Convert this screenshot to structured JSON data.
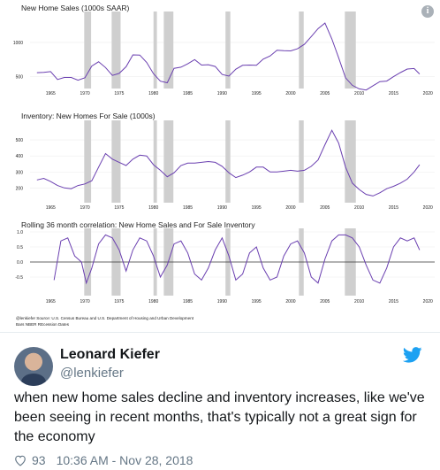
{
  "chart_data": [
    {
      "type": "line",
      "title": "New Home Sales (1000s SAAR)",
      "x_ticks": [
        "1965",
        "1970",
        "1975",
        "1980",
        "1985",
        "1990",
        "1995",
        "2000",
        "2005",
        "2010",
        "2015",
        "2020"
      ],
      "y_ticks": [
        "500",
        "1000"
      ],
      "ylim": [
        380,
        1400
      ],
      "xlim": [
        1962,
        2021
      ],
      "series": [
        {
          "x": [
            1963,
            1964,
            1965,
            1966,
            1967,
            1968,
            1969,
            1970,
            1971,
            1972,
            1973,
            1974,
            1975,
            1976,
            1977,
            1978,
            1979,
            1980,
            1981,
            1982,
            1983,
            1984,
            1985,
            1986,
            1987,
            1988,
            1989,
            1990,
            1991,
            1992,
            1993,
            1994,
            1995,
            1996,
            1997,
            1998,
            1999,
            2000,
            2001,
            2002,
            2003,
            2004,
            2005,
            2006,
            2007,
            2008,
            2009,
            2010,
            2011,
            2012,
            2013,
            2014,
            2015,
            2016,
            2017,
            2018,
            2018.8
          ],
          "y": [
            560,
            565,
            575,
            460,
            490,
            490,
            450,
            485,
            656,
            718,
            634,
            519,
            549,
            646,
            819,
            817,
            709,
            545,
            436,
            412,
            623,
            639,
            688,
            750,
            671,
            676,
            650,
            534,
            509,
            610,
            666,
            670,
            667,
            757,
            804,
            886,
            880,
            877,
            908,
            973,
            1086,
            1203,
            1283,
            1051,
            776,
            485,
            375,
            323,
            306,
            368,
            429,
            437,
            501,
            561,
            613,
            620,
            540
          ]
        }
      ],
      "recessions": [
        [
          1969.9,
          1970.9
        ],
        [
          1973.9,
          1975.2
        ],
        [
          1980.0,
          1980.5
        ],
        [
          1981.5,
          1982.9
        ],
        [
          1990.5,
          1991.2
        ],
        [
          2001.2,
          2001.9
        ],
        [
          2007.9,
          2009.5
        ]
      ]
    },
    {
      "type": "line",
      "title": "Inventory: New Homes For Sale (1000s)",
      "x_ticks": [
        "1965",
        "1970",
        "1975",
        "1980",
        "1985",
        "1990",
        "1995",
        "2000",
        "2005",
        "2010",
        "2015",
        "2020"
      ],
      "y_ticks": [
        "200",
        "300",
        "400",
        "500"
      ],
      "ylim": [
        130,
        600
      ],
      "xlim": [
        1962,
        2021
      ],
      "series": [
        {
          "x": [
            1963,
            1964,
            1965,
            1966,
            1967,
            1968,
            1969,
            1970,
            1971,
            1972,
            1973,
            1974,
            1975,
            1976,
            1977,
            1978,
            1979,
            1980,
            1981,
            1982,
            1983,
            1984,
            1985,
            1986,
            1987,
            1988,
            1989,
            1990,
            1991,
            1992,
            1993,
            1994,
            1995,
            1996,
            1997,
            1998,
            1999,
            2000,
            2001,
            2002,
            2003,
            2004,
            2005,
            2006,
            2007,
            2008,
            2009,
            2010,
            2011,
            2012,
            2013,
            2014,
            2015,
            2016,
            2017,
            2018,
            2018.8
          ],
          "y": [
            250,
            260,
            240,
            215,
            200,
            195,
            215,
            225,
            245,
            330,
            415,
            380,
            360,
            340,
            380,
            405,
            400,
            345,
            310,
            270,
            295,
            340,
            355,
            355,
            360,
            365,
            360,
            335,
            295,
            265,
            280,
            300,
            330,
            330,
            300,
            300,
            305,
            310,
            305,
            310,
            335,
            375,
            470,
            560,
            480,
            330,
            230,
            190,
            160,
            150,
            170,
            195,
            210,
            230,
            255,
            300,
            345
          ]
        }
      ],
      "recessions": [
        [
          1969.9,
          1970.9
        ],
        [
          1973.9,
          1975.2
        ],
        [
          1980.0,
          1980.5
        ],
        [
          1981.5,
          1982.9
        ],
        [
          1990.5,
          1991.2
        ],
        [
          2001.2,
          2001.9
        ],
        [
          2007.9,
          2009.5
        ]
      ]
    },
    {
      "type": "line",
      "title": "Rolling 36 month correlation: New Home Sales and For Sale Inventory",
      "x_ticks": [
        "1965",
        "1970",
        "1975",
        "1980",
        "1985",
        "1990",
        "1995",
        "2000",
        "2005",
        "2010",
        "2015",
        "2020"
      ],
      "y_ticks": [
        "1.0",
        "0.5",
        "0.0",
        "-0.5"
      ],
      "ylim": [
        -1.0,
        1.0
      ],
      "xlim": [
        1962,
        2021
      ],
      "series": [
        {
          "x": [
            1965.5,
            1966.5,
            1967.5,
            1968.5,
            1969.5,
            1970.2,
            1971,
            1972,
            1973,
            1974,
            1975,
            1976,
            1977,
            1978,
            1979,
            1980,
            1981,
            1982,
            1983,
            1984,
            1985,
            1986,
            1987,
            1988,
            1989,
            1990,
            1991,
            1992,
            1993,
            1994,
            1995,
            1996,
            1997,
            1998,
            1999,
            2000,
            2001,
            2002,
            2003,
            2004,
            2005,
            2006,
            2007,
            2008,
            2009,
            2010,
            2011,
            2012,
            2013,
            2014,
            2015,
            2016,
            2017,
            2018,
            2018.8
          ],
          "y": [
            -0.6,
            0.7,
            0.8,
            0.2,
            0.0,
            -0.7,
            -0.2,
            0.6,
            0.9,
            0.8,
            0.4,
            -0.3,
            0.4,
            0.8,
            0.7,
            0.2,
            -0.5,
            -0.1,
            0.6,
            0.7,
            0.3,
            -0.4,
            -0.6,
            -0.2,
            0.4,
            0.8,
            0.2,
            -0.6,
            -0.4,
            0.3,
            0.5,
            -0.2,
            -0.6,
            -0.5,
            0.2,
            0.6,
            0.7,
            0.3,
            -0.5,
            -0.7,
            0.1,
            0.7,
            0.9,
            0.9,
            0.8,
            0.5,
            -0.1,
            -0.6,
            -0.7,
            -0.2,
            0.5,
            0.8,
            0.7,
            0.8,
            0.4
          ]
        }
      ],
      "recessions": [
        [
          1969.9,
          1970.9
        ],
        [
          1973.9,
          1975.2
        ],
        [
          1980.0,
          1980.5
        ],
        [
          1981.5,
          1982.9
        ],
        [
          1990.5,
          1991.2
        ],
        [
          2001.2,
          2001.9
        ],
        [
          2007.9,
          2009.5
        ]
      ]
    }
  ],
  "chart_caption": {
    "line1": "@lenkiefer Source: U.S. Census Bureau and U.S. Department of Housing and Urban Development",
    "line2": "Bars NBER REcession Dates"
  },
  "colors": {
    "line": "#6a3fb0",
    "recession": "#cfcfcf",
    "zero_line": "#333333",
    "link": "#1da1f2",
    "muted": "#657786"
  },
  "tweet": {
    "display_name": "Leonard Kiefer",
    "handle": "@lenkiefer",
    "text": "when new home sales decline and inventory increases, like we've been seeing in recent months, that's typically not a great sign for the economy",
    "likes": "93",
    "timestamp": "10:36 AM - Nov 28, 2018",
    "info_glyph": "i"
  },
  "icons": {
    "info": "info-icon",
    "bird": "twitter-bird-icon",
    "heart": "heart-icon",
    "avatar": "avatar"
  }
}
